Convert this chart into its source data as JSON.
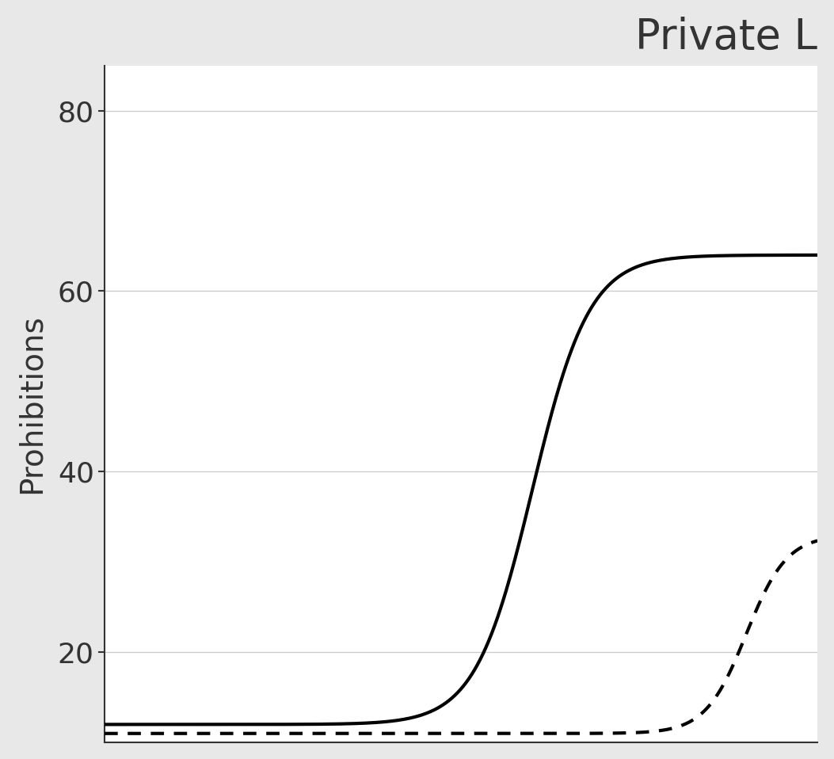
{
  "title": "Private L",
  "ylabel": "Prohibitions",
  "yticks": [
    20,
    40,
    60,
    80
  ],
  "ylim": [
    10,
    85
  ],
  "xlim": [
    0,
    10
  ],
  "background_color": "#e8e8e8",
  "plot_bg_color": "#ffffff",
  "grid_color": "#cccccc",
  "line1_color": "#000000",
  "line2_color": "#000000",
  "title_fontsize": 38,
  "ylabel_fontsize": 28,
  "ytick_fontsize": 26
}
